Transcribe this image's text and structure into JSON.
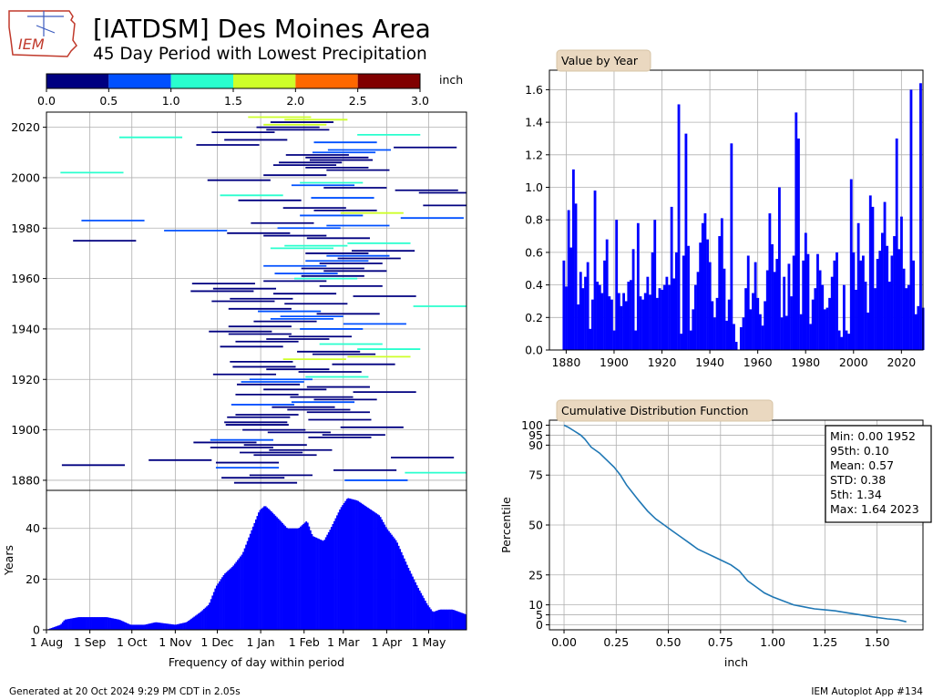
{
  "header": {
    "logo_text": "IEM",
    "title": "[IATDSM] Des Moines Area",
    "subtitle": "45 Day Period with Lowest Precipitation"
  },
  "footer": {
    "generated": "Generated at 20 Oct 2024 9:29 PM CDT in 2.05s",
    "app": "IEM Autoplot App #134"
  },
  "colors": {
    "bar": "#0000ff",
    "cdf_line": "#1f77b4",
    "tab_bg": "#ead8c0",
    "grid": "#b0b0b0",
    "colorbar": [
      "#000080",
      "#0050ff",
      "#29ffce",
      "#ceff29",
      "#ff6800",
      "#800000"
    ]
  },
  "chart_data": [
    {
      "id": "colorbar",
      "type": "colorbar",
      "unit_label": "inch",
      "bounds": [
        0.0,
        0.5,
        1.0,
        1.5,
        2.0,
        2.5,
        3.0
      ],
      "tick_labels": [
        "0.0",
        "0.5",
        "1.0",
        "1.5",
        "2.0",
        "2.5",
        "3.0"
      ]
    },
    {
      "id": "periods",
      "type": "timeline",
      "xlabel": "",
      "ylabel": "",
      "xlim": [
        0,
        300
      ],
      "ylim": [
        1876,
        2026
      ],
      "y_ticks": [
        1880,
        1900,
        1920,
        1940,
        1960,
        1980,
        2000,
        2020
      ],
      "note": "Each row: [year, start day offset from 1 Aug, precip inch]; each segment spans 45 days",
      "rows": [
        [
          2024,
          144,
          1.64
        ],
        [
          2023,
          170,
          1.6
        ],
        [
          2022,
          160,
          0.42
        ],
        [
          2021,
          155,
          1.62
        ],
        [
          2020,
          150,
          0.3
        ],
        [
          2019,
          157,
          0.13
        ],
        [
          2018,
          118,
          0.45
        ],
        [
          2017,
          222,
          1.2
        ],
        [
          2016,
          52,
          1.06
        ],
        [
          2015,
          127,
          0.3
        ],
        [
          2014,
          191,
          0.9
        ],
        [
          2013,
          107,
          0.4
        ],
        [
          2012,
          248,
          0.38
        ],
        [
          2011,
          201,
          0.58
        ],
        [
          2010,
          190,
          0.96
        ],
        [
          2009,
          171,
          0.02
        ],
        [
          2008,
          185,
          0.15
        ],
        [
          2007,
          188,
          0.35
        ],
        [
          2006,
          166,
          0.2
        ],
        [
          2005,
          162,
          0.04
        ],
        [
          2004,
          185,
          0.02
        ],
        [
          2003,
          200,
          0.4
        ],
        [
          2002,
          10,
          1.28
        ],
        [
          2001,
          155,
          0.36
        ],
        [
          1999,
          115,
          0.09
        ],
        [
          1998,
          181,
          1.08
        ],
        [
          1997,
          175,
          0.58
        ],
        [
          1996,
          198,
          0.44
        ],
        [
          1995,
          249,
          0.05
        ],
        [
          1994,
          266,
          0.1
        ],
        [
          1993,
          124,
          1.16
        ],
        [
          1992,
          189,
          0.83
        ],
        [
          1991,
          137,
          0.12
        ],
        [
          1989,
          269,
          0.44
        ],
        [
          1988,
          169,
          0.04
        ],
        [
          1987,
          191,
          0.16
        ],
        [
          1986,
          210,
          1.87
        ],
        [
          1985,
          181,
          0.6
        ],
        [
          1984,
          253,
          0.68
        ],
        [
          1983,
          25,
          0.73
        ],
        [
          1982,
          146,
          0.02
        ],
        [
          1981,
          200,
          0.58
        ],
        [
          1980,
          165,
          0.6
        ],
        [
          1979,
          84,
          0.58
        ],
        [
          1978,
          129,
          0.06
        ],
        [
          1977,
          155,
          0.16
        ],
        [
          1976,
          186,
          0.3
        ],
        [
          1975,
          19,
          0.05
        ],
        [
          1974,
          215,
          1.22
        ],
        [
          1973,
          170,
          1.24
        ],
        [
          1972,
          160,
          1.46
        ],
        [
          1971,
          218,
          0.06
        ],
        [
          1970,
          185,
          0.15
        ],
        [
          1969,
          200,
          0.5
        ],
        [
          1968,
          208,
          0.02
        ],
        [
          1967,
          185,
          0.53
        ],
        [
          1966,
          195,
          0.04
        ],
        [
          1965,
          155,
          0.73
        ],
        [
          1964,
          182,
          0.36
        ],
        [
          1963,
          198,
          0.24
        ],
        [
          1962,
          163,
          0.56
        ],
        [
          1961,
          182,
          0.05
        ],
        [
          1960,
          177,
          1.09
        ],
        [
          1959,
          155,
          0.38
        ],
        [
          1958,
          104,
          0.04
        ],
        [
          1957,
          195,
          0.3
        ],
        [
          1956,
          119,
          0.06
        ],
        [
          1955,
          103,
          0.38
        ],
        [
          1954,
          162,
          0.12
        ],
        [
          1953,
          219,
          0.2
        ],
        [
          1952,
          131,
          0.0
        ],
        [
          1951,
          118,
          0.04
        ],
        [
          1950,
          170,
          0.11
        ],
        [
          1949,
          262,
          1.2
        ],
        [
          1948,
          130,
          0.02
        ],
        [
          1947,
          151,
          0.56
        ],
        [
          1946,
          193,
          0.21
        ],
        [
          1945,
          167,
          0.5
        ],
        [
          1944,
          160,
          0.8
        ],
        [
          1943,
          148,
          0.14
        ],
        [
          1942,
          212,
          0.7
        ],
        [
          1941,
          130,
          0.3
        ],
        [
          1940,
          181,
          0.78
        ],
        [
          1939,
          116,
          0.42
        ],
        [
          1938,
          130,
          0.45
        ],
        [
          1937,
          173,
          0.26
        ],
        [
          1936,
          157,
          0.08
        ],
        [
          1935,
          135,
          0.08
        ],
        [
          1934,
          195,
          1.27
        ],
        [
          1933,
          124,
          0.12
        ],
        [
          1932,
          222,
          1.3
        ],
        [
          1931,
          179,
          0.02
        ],
        [
          1930,
          190,
          0.05
        ],
        [
          1929,
          215,
          1.51
        ],
        [
          1928,
          169,
          1.77
        ],
        [
          1927,
          131,
          0.01
        ],
        [
          1926,
          204,
          0.44
        ],
        [
          1925,
          133,
          0.1
        ],
        [
          1924,
          157,
          0.08
        ],
        [
          1923,
          180,
          0.26
        ],
        [
          1922,
          119,
          0.05
        ],
        [
          1921,
          185,
          1.2
        ],
        [
          1920,
          145,
          0.8
        ],
        [
          1919,
          139,
          0.7
        ],
        [
          1918,
          136,
          0.1
        ],
        [
          1917,
          186,
          0.12
        ],
        [
          1916,
          155,
          0.3
        ],
        [
          1915,
          219,
          0.06
        ],
        [
          1914,
          135,
          0.06
        ],
        [
          1913,
          174,
          0.4
        ],
        [
          1912,
          191,
          0.12
        ],
        [
          1911,
          175,
          0.65
        ],
        [
          1910,
          132,
          0.6
        ],
        [
          1909,
          161,
          0.15
        ],
        [
          1908,
          172,
          0.12
        ],
        [
          1907,
          186,
          0.08
        ],
        [
          1906,
          135,
          0.05
        ],
        [
          1905,
          129,
          0.3
        ],
        [
          1904,
          187,
          0.42
        ],
        [
          1903,
          127,
          0.14
        ],
        [
          1902,
          128,
          0.34
        ],
        [
          1901,
          210,
          0.13
        ],
        [
          1900,
          140,
          0.08
        ],
        [
          1899,
          158,
          0.2
        ],
        [
          1898,
          197,
          0.06
        ],
        [
          1897,
          187,
          0.2
        ],
        [
          1896,
          117,
          0.72
        ],
        [
          1895,
          105,
          0.06
        ],
        [
          1894,
          141,
          0.36
        ],
        [
          1893,
          117,
          0.26
        ],
        [
          1892,
          159,
          0.4
        ],
        [
          1891,
          138,
          0.04
        ],
        [
          1890,
          148,
          0.42
        ],
        [
          1889,
          246,
          0.04
        ],
        [
          1888,
          73,
          0.06
        ],
        [
          1887,
          121,
          0.08
        ],
        [
          1886,
          11,
          0.02
        ],
        [
          1885,
          121,
          0.52
        ],
        [
          1884,
          205,
          0.44
        ],
        [
          1883,
          256,
          1.28
        ],
        [
          1882,
          145,
          0.14
        ],
        [
          1881,
          125,
          0.4
        ],
        [
          1880,
          213,
          0.56
        ],
        [
          1879,
          134,
          0.12
        ]
      ]
    },
    {
      "id": "frequency",
      "type": "bar",
      "xlabel": "Frequency of day within period",
      "ylabel": "Years",
      "xlim": [
        0,
        300
      ],
      "ylim": [
        0,
        55
      ],
      "y_ticks": [
        0,
        20,
        40
      ],
      "x_ticks": [
        {
          "day": 0,
          "label": "1 Aug"
        },
        {
          "day": 31,
          "label": "1 Sep"
        },
        {
          "day": 61,
          "label": "1 Oct"
        },
        {
          "day": 92,
          "label": "1 Nov"
        },
        {
          "day": 122,
          "label": "1 Dec"
        },
        {
          "day": 153,
          "label": "1 Jan"
        },
        {
          "day": 184,
          "label": "1 Feb"
        },
        {
          "day": 212,
          "label": "1 Mar"
        },
        {
          "day": 243,
          "label": "1 Apr"
        },
        {
          "day": 273,
          "label": "1 May"
        }
      ],
      "profile": [
        [
          0,
          0
        ],
        [
          10,
          2
        ],
        [
          13,
          4
        ],
        [
          23,
          5
        ],
        [
          43,
          5
        ],
        [
          52,
          4
        ],
        [
          60,
          2
        ],
        [
          70,
          2
        ],
        [
          78,
          3
        ],
        [
          92,
          2
        ],
        [
          100,
          3
        ],
        [
          110,
          7
        ],
        [
          116,
          10
        ],
        [
          121,
          17
        ],
        [
          127,
          22
        ],
        [
          133,
          25
        ],
        [
          140,
          30
        ],
        [
          147,
          40
        ],
        [
          152,
          47
        ],
        [
          156,
          49
        ],
        [
          160,
          47
        ],
        [
          167,
          43
        ],
        [
          172,
          40
        ],
        [
          180,
          40
        ],
        [
          186,
          43
        ],
        [
          190,
          37
        ],
        [
          198,
          35
        ],
        [
          203,
          40
        ],
        [
          210,
          48
        ],
        [
          215,
          52
        ],
        [
          222,
          51
        ],
        [
          230,
          48
        ],
        [
          238,
          45
        ],
        [
          243,
          40
        ],
        [
          250,
          35
        ],
        [
          258,
          25
        ],
        [
          265,
          17
        ],
        [
          272,
          10
        ],
        [
          276,
          7
        ],
        [
          281,
          8
        ],
        [
          290,
          8
        ],
        [
          300,
          6
        ]
      ]
    },
    {
      "id": "value_by_year",
      "type": "bar",
      "title": "Value by Year",
      "xlabel": "",
      "ylabel": "",
      "xlim": [
        1873,
        2029
      ],
      "ylim": [
        0,
        1.72
      ],
      "x_ticks": [
        1880,
        1900,
        1920,
        1940,
        1960,
        1980,
        2000,
        2020
      ],
      "y_ticks": [
        0.0,
        0.2,
        0.4,
        0.6,
        0.8,
        1.0,
        1.2,
        1.4,
        1.6
      ],
      "start_year": 1879,
      "values": [
        0.55,
        0.39,
        0.86,
        0.63,
        1.11,
        0.9,
        0.28,
        0.48,
        0.38,
        0.45,
        0.54,
        0.13,
        0.31,
        0.98,
        0.42,
        0.4,
        0.35,
        0.55,
        0.68,
        0.33,
        0.31,
        0.12,
        0.8,
        0.35,
        0.27,
        0.35,
        0.3,
        0.42,
        0.43,
        0.62,
        0.12,
        0.78,
        0.33,
        0.31,
        0.35,
        0.45,
        0.34,
        0.6,
        0.8,
        0.32,
        0.38,
        0.37,
        0.4,
        0.45,
        0.4,
        0.88,
        0.44,
        0.6,
        1.51,
        0.1,
        0.58,
        1.33,
        0.64,
        0.12,
        0.25,
        0.4,
        0.48,
        0.66,
        0.78,
        0.84,
        0.68,
        0.54,
        0.3,
        0.2,
        0.32,
        0.7,
        0.81,
        0.5,
        0.18,
        0.31,
        1.27,
        0.16,
        0.05,
        0.0,
        0.14,
        0.2,
        0.38,
        0.58,
        0.25,
        0.35,
        0.54,
        0.32,
        0.22,
        0.15,
        0.3,
        0.49,
        0.84,
        0.65,
        0.48,
        0.56,
        1.0,
        0.2,
        0.45,
        0.21,
        0.53,
        0.33,
        0.58,
        1.46,
        1.3,
        0.22,
        0.55,
        0.72,
        0.59,
        0.16,
        0.31,
        0.38,
        0.59,
        0.49,
        0.4,
        0.25,
        0.26,
        0.32,
        0.45,
        0.55,
        0.6,
        0.12,
        0.08,
        0.4,
        0.12,
        0.1,
        1.05,
        0.6,
        0.37,
        0.78,
        0.55,
        0.58,
        0.42,
        0.23,
        0.95,
        0.88,
        0.38,
        0.56,
        0.61,
        0.72,
        0.91,
        0.64,
        0.42,
        0.58,
        0.7,
        1.3,
        0.62,
        0.82,
        0.5,
        0.38,
        0.4,
        1.6,
        0.55,
        0.22,
        0.27,
        1.64,
        0.26
      ]
    },
    {
      "id": "cdf",
      "type": "line",
      "title": "Cumulative Distribution Function",
      "xlabel": "inch",
      "ylabel": "Percentile",
      "xlim": [
        -0.07,
        1.72
      ],
      "ylim": [
        -2.5,
        102.5
      ],
      "x_ticks": [
        0.0,
        0.25,
        0.5,
        0.75,
        1.0,
        1.25,
        1.5
      ],
      "x_tick_labels": [
        "0.00",
        "0.25",
        "0.50",
        "0.75",
        "1.00",
        "1.25",
        "1.50"
      ],
      "y_ticks": [
        0,
        5,
        10,
        25,
        50,
        75,
        90,
        95,
        100
      ],
      "x": [
        0.0,
        0.02,
        0.05,
        0.08,
        0.1,
        0.13,
        0.17,
        0.2,
        0.24,
        0.27,
        0.3,
        0.33,
        0.36,
        0.4,
        0.44,
        0.48,
        0.52,
        0.56,
        0.6,
        0.64,
        0.68,
        0.72,
        0.76,
        0.8,
        0.84,
        0.88,
        0.92,
        0.96,
        1.0,
        1.05,
        1.1,
        1.15,
        1.2,
        1.25,
        1.3,
        1.36,
        1.42,
        1.48,
        1.55,
        1.6,
        1.64
      ],
      "y": [
        100,
        99,
        97,
        95,
        93,
        89,
        86,
        83,
        79,
        75,
        70,
        66,
        62,
        57,
        53,
        50,
        47,
        44,
        41,
        38,
        36,
        34,
        32,
        30,
        27,
        22,
        19,
        16,
        14,
        12,
        10,
        9,
        8,
        7.5,
        7,
        6,
        5,
        4,
        3,
        2.5,
        1.5
      ],
      "stats_box": [
        "Min: 0.00 1952",
        "95th: 0.10",
        "Mean: 0.57",
        "STD: 0.38",
        "5th: 1.34",
        "Max: 1.64 2023"
      ]
    }
  ]
}
